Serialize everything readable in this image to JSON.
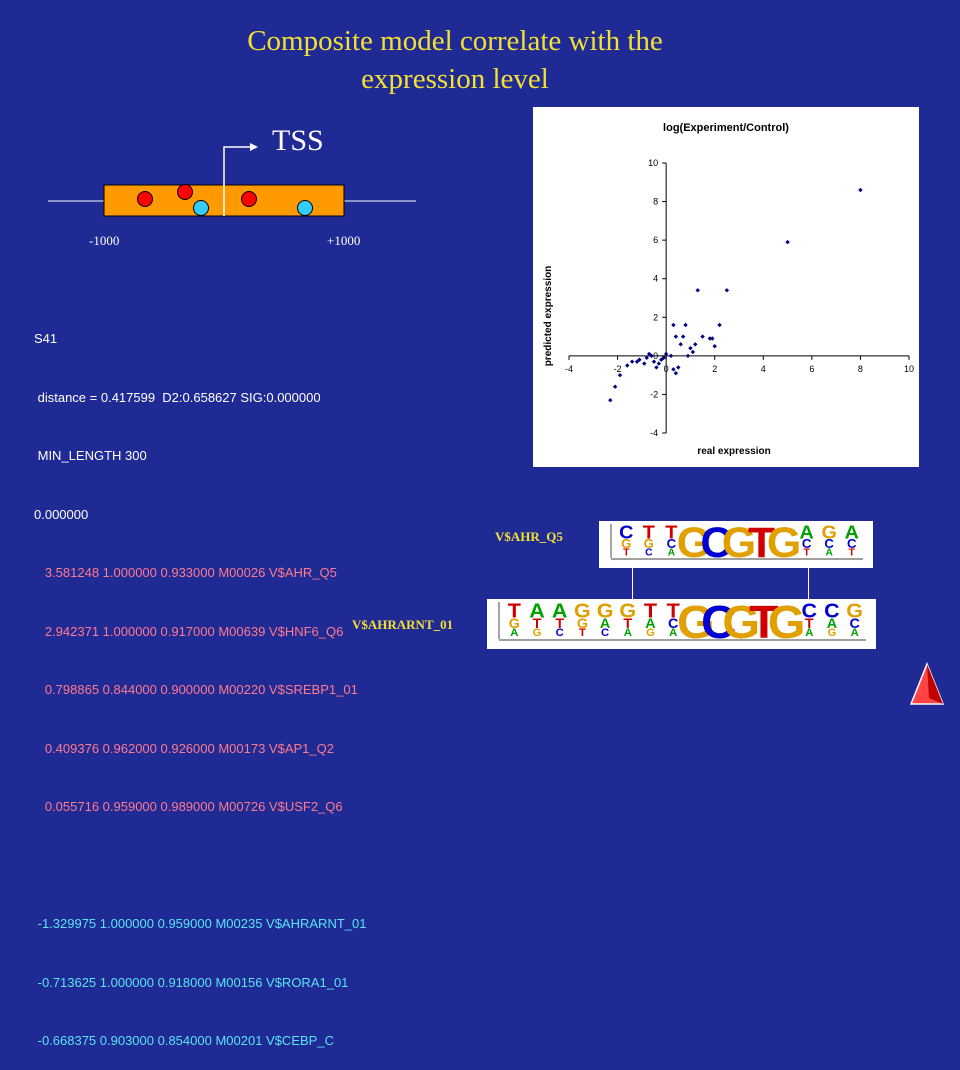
{
  "title": {
    "line1": "Composite model correlate with the",
    "line2": "expression level"
  },
  "promoter": {
    "tss_label": "TSS",
    "left_tick": "-1000",
    "right_tick": "+1000",
    "colors": {
      "region": "#ff9900",
      "red_site": "#ff0000",
      "cyan_site": "#33ccff"
    }
  },
  "model": {
    "name": "S41",
    "stats": " distance = 0.417599  D2:0.658627 SIG:0.000000",
    "min_length": " MIN_LENGTH 300",
    "threshold": "0.000000",
    "positive_factors": [
      "   3.581248 1.000000 0.933000 M00026 V$AHR_Q5",
      "   2.942371 1.000000 0.917000 M00639 V$HNF6_Q6",
      "   0.798865 0.844000 0.900000 M00220 V$SREBP1_01",
      "   0.409376 0.962000 0.926000 M00173 V$AP1_Q2",
      "   0.055716 0.959000 0.989000 M00726 V$USF2_Q6"
    ],
    "negative_factors": [
      " -1.329975 1.000000 0.959000 M00235 V$AHRARNT_01",
      " -0.713625 1.000000 0.918000 M00156 V$RORA1_01",
      " -0.668375 0.903000 0.854000 M00201 V$CEBP_C"
    ],
    "colors": {
      "header": "#ffffff",
      "positive": "#ff7a8e",
      "negative": "#58e4f4"
    }
  },
  "chart_data": {
    "type": "scatter",
    "title": "log(Experiment/Control)",
    "xlabel": "real expression",
    "ylabel": "predicted expression",
    "xlim": [
      -4,
      10
    ],
    "ylim": [
      -4,
      10
    ],
    "xticks": [
      -4,
      -2,
      0,
      2,
      4,
      6,
      8,
      10
    ],
    "yticks": [
      -4,
      -2,
      0,
      2,
      4,
      6,
      8,
      10
    ],
    "grid": false,
    "marker_color": "#000080",
    "series": [
      {
        "points": [
          [
            -2.3,
            -2.3
          ],
          [
            -2.1,
            -1.6
          ],
          [
            -1.9,
            -1.0
          ],
          [
            -1.6,
            -0.5
          ],
          [
            -1.4,
            -0.3
          ],
          [
            -1.2,
            -0.3
          ],
          [
            -1.1,
            -0.2
          ],
          [
            -0.9,
            -0.4
          ],
          [
            -0.8,
            -0.1
          ],
          [
            -0.7,
            0.1
          ],
          [
            -0.6,
            0.0
          ],
          [
            -0.5,
            -0.3
          ],
          [
            -0.4,
            -0.6
          ],
          [
            -0.3,
            -0.4
          ],
          [
            -0.2,
            -0.2
          ],
          [
            -0.1,
            -0.1
          ],
          [
            0.0,
            0.1
          ],
          [
            0.2,
            0.0
          ],
          [
            0.3,
            -0.7
          ],
          [
            0.4,
            -0.9
          ],
          [
            0.5,
            -0.6
          ],
          [
            0.3,
            1.6
          ],
          [
            0.4,
            1.0
          ],
          [
            0.6,
            0.6
          ],
          [
            0.7,
            1.0
          ],
          [
            0.8,
            1.6
          ],
          [
            0.9,
            0.0
          ],
          [
            1.0,
            0.4
          ],
          [
            1.1,
            0.2
          ],
          [
            1.2,
            0.6
          ],
          [
            1.3,
            3.4
          ],
          [
            1.5,
            1.0
          ],
          [
            1.8,
            0.9
          ],
          [
            1.9,
            0.9
          ],
          [
            2.0,
            0.5
          ],
          [
            2.2,
            1.6
          ],
          [
            2.5,
            3.4
          ],
          [
            5.0,
            5.9
          ],
          [
            8.0,
            8.6
          ]
        ]
      }
    ]
  },
  "logos": {
    "top": {
      "name": "V$AHR_Q5",
      "columns": [
        {
          "big": "",
          "top": "C",
          "mid": "G",
          "bot": "T"
        },
        {
          "big": "",
          "top": "T",
          "mid": "G",
          "bot": "C"
        },
        {
          "big": "",
          "top": "T",
          "mid": "C",
          "bot": "A"
        },
        {
          "big": "G",
          "top": "",
          "mid": "",
          "bot": ""
        },
        {
          "big": "C",
          "top": "",
          "mid": "",
          "bot": ""
        },
        {
          "big": "G",
          "top": "",
          "mid": "",
          "bot": ""
        },
        {
          "big": "T",
          "top": "",
          "mid": "",
          "bot": ""
        },
        {
          "big": "G",
          "top": "",
          "mid": "",
          "bot": ""
        },
        {
          "big": "",
          "top": "A",
          "mid": "C",
          "bot": "T"
        },
        {
          "big": "",
          "top": "G",
          "mid": "C",
          "bot": "A"
        },
        {
          "big": "",
          "top": "A",
          "mid": "C",
          "bot": "T"
        }
      ]
    },
    "bottom": {
      "name": "V$AHRARNT_01",
      "columns": [
        {
          "big": "",
          "top": "T",
          "mid": "G",
          "bot": "A"
        },
        {
          "big": "",
          "top": "A",
          "mid": "T",
          "bot": "G"
        },
        {
          "big": "",
          "top": "A",
          "mid": "T",
          "bot": "C"
        },
        {
          "big": "",
          "top": "G",
          "mid": "G",
          "bot": "T"
        },
        {
          "big": "",
          "top": "G",
          "mid": "A",
          "bot": "C"
        },
        {
          "big": "",
          "top": "G",
          "mid": "T",
          "bot": "A"
        },
        {
          "big": "",
          "top": "T",
          "mid": "A",
          "bot": "G"
        },
        {
          "big": "",
          "top": "T",
          "mid": "C",
          "bot": "A"
        },
        {
          "big": "G",
          "top": "",
          "mid": "",
          "bot": ""
        },
        {
          "big": "C",
          "top": "",
          "mid": "",
          "bot": ""
        },
        {
          "big": "G",
          "top": "",
          "mid": "",
          "bot": ""
        },
        {
          "big": "T",
          "top": "",
          "mid": "",
          "bot": ""
        },
        {
          "big": "G",
          "top": "",
          "mid": "",
          "bot": ""
        },
        {
          "big": "",
          "top": "C",
          "mid": "T",
          "bot": "A"
        },
        {
          "big": "",
          "top": "C",
          "mid": "A",
          "bot": "G"
        },
        {
          "big": "",
          "top": "G",
          "mid": "C",
          "bot": "A"
        }
      ]
    },
    "nucleotide_colors": {
      "A": "#00a000",
      "C": "#0000d0",
      "G": "#e0a000",
      "T": "#d00000"
    }
  }
}
